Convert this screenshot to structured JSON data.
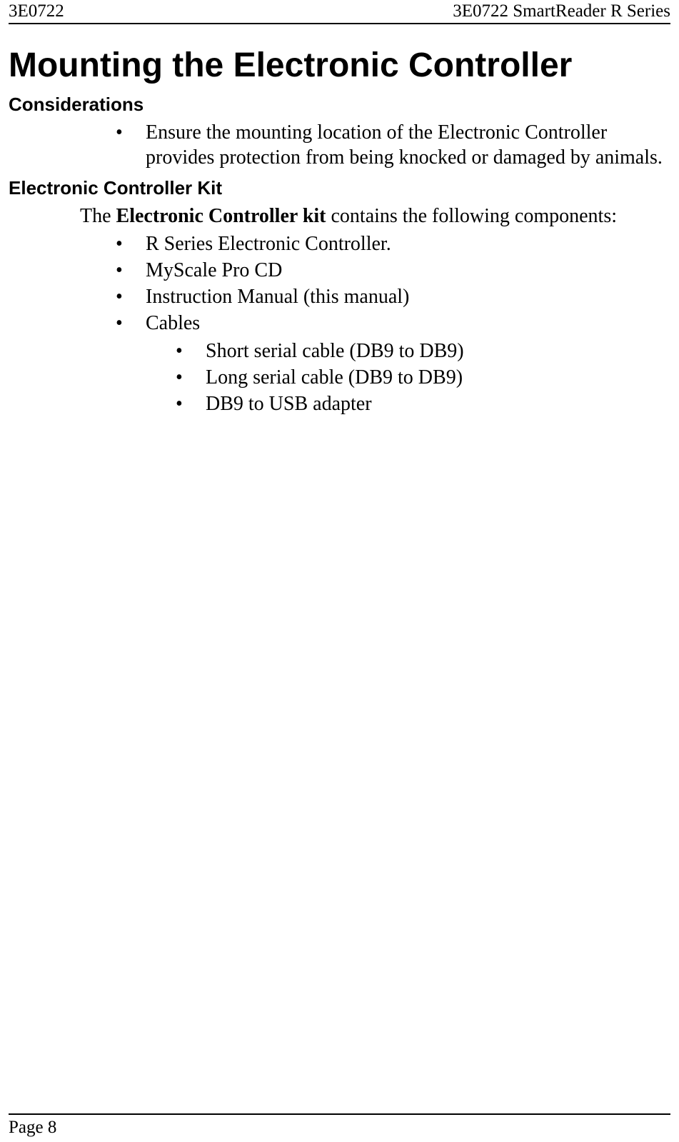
{
  "header": {
    "left": "3E0722",
    "right": "3E0722 SmartReader R Series"
  },
  "title": "Mounting the Electronic Controller",
  "sections": {
    "considerations": {
      "heading": "Considerations",
      "items": [
        "Ensure the mounting location of the Electronic Controller provides protection from being knocked or damaged by animals."
      ]
    },
    "kit": {
      "heading": "Electronic Controller Kit",
      "intro_prefix": "The ",
      "intro_bold": "Electronic Controller kit",
      "intro_suffix": " contains the following components:",
      "items": [
        "R Series Electronic Controller.",
        "MyScale Pro CD",
        "Instruction Manual (this manual)",
        "Cables"
      ],
      "cables_subitems": [
        "Short serial cable (DB9 to DB9)",
        "Long serial cable (DB9 to DB9)",
        "DB9 to USB adapter"
      ]
    }
  },
  "footer": {
    "page_label": "Page 8"
  }
}
